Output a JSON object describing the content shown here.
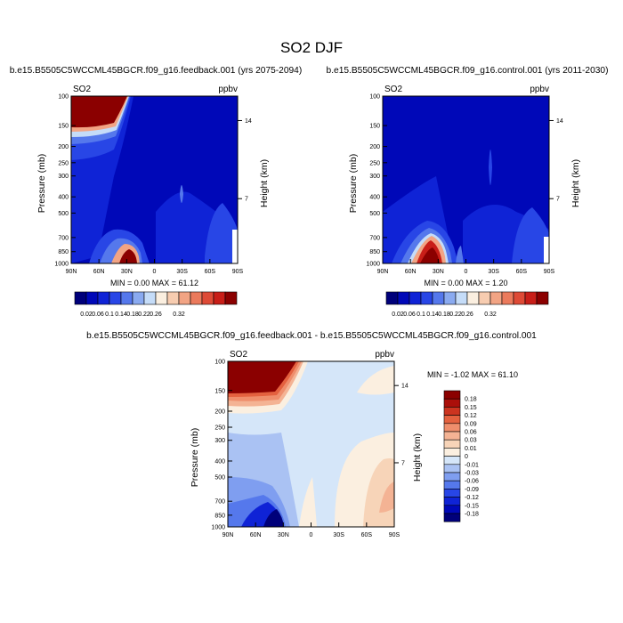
{
  "figure": {
    "title": "SO2 DJF"
  },
  "colors": {
    "abs_scale": [
      "#00007a",
      "#0008b8",
      "#0f23d6",
      "#2846e6",
      "#5578ec",
      "#8aaaf0",
      "#c5dcf8",
      "#fbefe0",
      "#f7ccb0",
      "#f2a484",
      "#eb7a5c",
      "#de4a36",
      "#c81e18",
      "#8b0000"
    ],
    "diff_scale": [
      "#00007a",
      "#0008b8",
      "#0f23d6",
      "#2846e6",
      "#5578ec",
      "#7f9ef0",
      "#aac2f3",
      "#d5e6f9",
      "#fbefe0",
      "#f7d4b8",
      "#f4b394",
      "#ef8e6c",
      "#e4613f",
      "#cc3420",
      "#ab0f0a",
      "#8b0000"
    ]
  },
  "chart_data": [
    {
      "type": "heatmap",
      "panel": "feedback",
      "title": "b.e15.B5505C5WCCML45BGCR.f09_g16.feedback.001 (yrs 2075-2094)",
      "left_label": "SO2",
      "right_label": "ppbv",
      "ylabel": "Pressure (mb)",
      "ylabel_right": "Height (km)",
      "xticks": [
        "90N",
        "60N",
        "30N",
        "0",
        "30S",
        "60S",
        "90S"
      ],
      "yticks": [
        "100",
        "150",
        "200",
        "250",
        "300",
        "400",
        "500",
        "700",
        "850",
        "1000"
      ],
      "yticks_right": [
        "14",
        "7"
      ],
      "y_scale": "log",
      "ylim": [
        1000,
        100
      ],
      "min": "0.00",
      "max": "61.12",
      "minmax_text": "MIN =   0.00  MAX =  61.12",
      "colorbar_ticks": [
        "0.02",
        "0.06",
        "0.1",
        "0.14",
        "0.18",
        "0.22",
        "0.26",
        "0.32"
      ]
    },
    {
      "type": "heatmap",
      "panel": "control",
      "title": "b.e15.B5505C5WCCML45BGCR.f09_g16.control.001 (yrs 2011-2030)",
      "left_label": "SO2",
      "right_label": "ppbv",
      "ylabel": "Pressure (mb)",
      "ylabel_right": "Height (km)",
      "xticks": [
        "90N",
        "60N",
        "30N",
        "0",
        "30S",
        "60S",
        "90S"
      ],
      "yticks": [
        "100",
        "150",
        "200",
        "250",
        "300",
        "400",
        "500",
        "700",
        "850",
        "1000"
      ],
      "yticks_right": [
        "14",
        "7"
      ],
      "y_scale": "log",
      "ylim": [
        1000,
        100
      ],
      "min": "0.00",
      "max": "1.20",
      "minmax_text": "MIN =   0.00  MAX =   1.20",
      "colorbar_ticks": [
        "0.02",
        "0.06",
        "0.1",
        "0.14",
        "0.18",
        "0.22",
        "0.26",
        "0.32"
      ]
    },
    {
      "type": "heatmap",
      "panel": "difference",
      "title": "b.e15.B5505C5WCCML45BGCR.f09_g16.feedback.001 - b.e15.B5505C5WCCML45BGCR.f09_g16.control.001",
      "left_label": "SO2",
      "right_label": "ppbv",
      "ylabel": "Pressure (mb)",
      "ylabel_right": "Height (km)",
      "xticks": [
        "90N",
        "60N",
        "30N",
        "0",
        "30S",
        "60S",
        "90S"
      ],
      "yticks": [
        "100",
        "150",
        "200",
        "250",
        "300",
        "400",
        "500",
        "700",
        "850",
        "1000"
      ],
      "yticks_right": [
        "14",
        "7"
      ],
      "y_scale": "log",
      "ylim": [
        1000,
        100
      ],
      "min": "-1.02",
      "max": "61.10",
      "minmax_text": "MIN =  -1.02  MAX =  61.10",
      "colorbar_ticks": [
        "0.18",
        "0.15",
        "0.12",
        "0.09",
        "0.06",
        "0.03",
        "0.01",
        "0",
        "-0.01",
        "-0.03",
        "-0.06",
        "-0.09",
        "-0.12",
        "-0.15",
        "-0.18"
      ]
    }
  ]
}
